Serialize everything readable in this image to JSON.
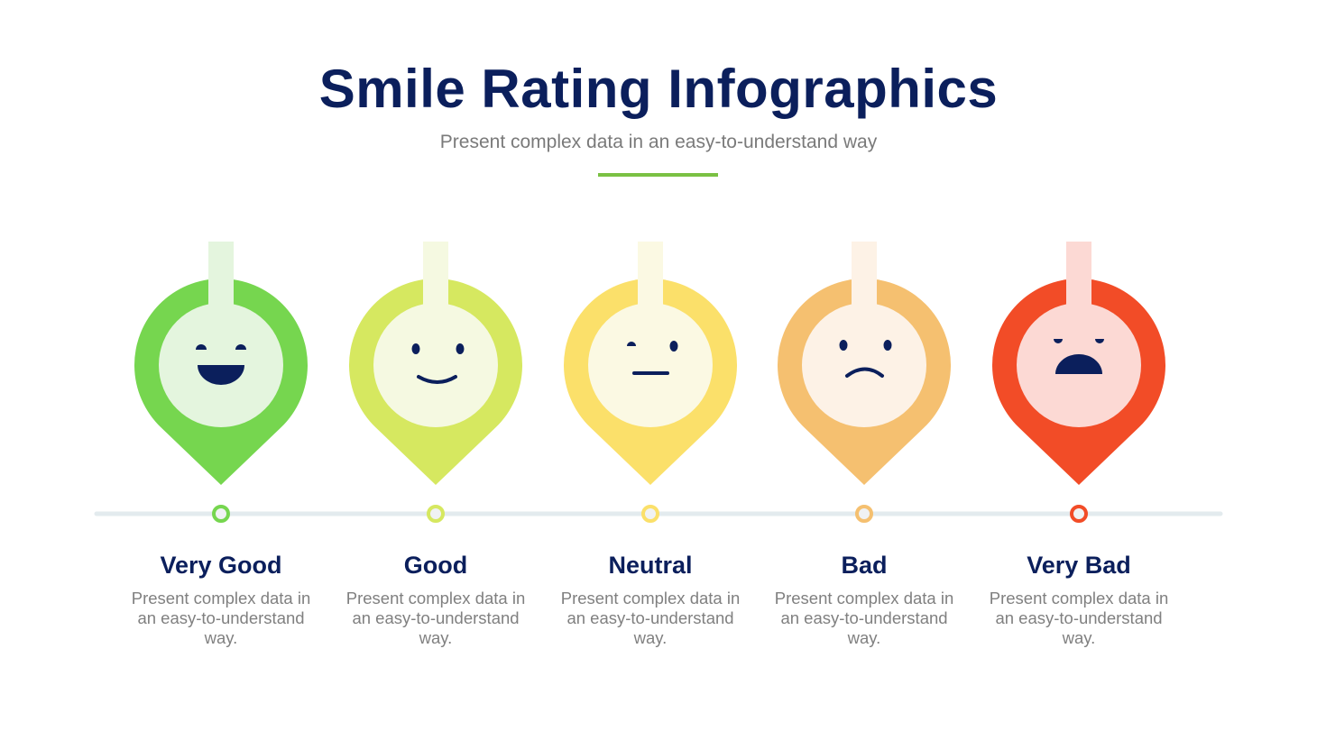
{
  "header": {
    "title": "Smile Rating Infographics",
    "subtitle": "Present complex data in an easy-to-understand way",
    "accent_color": "#7ac143"
  },
  "face_color": "#0b1f5c",
  "timeline_color": "#e3ebee",
  "ratings": [
    {
      "label": "Very Good",
      "description": "Present complex data in an easy-to-understand way.",
      "face": "big-smile-icon",
      "color": "#76d64f",
      "light": "#e4f5de"
    },
    {
      "label": "Good",
      "description": "Present complex data in an easy-to-understand way.",
      "face": "smile-icon",
      "color": "#d6e860",
      "light": "#f5f9e1"
    },
    {
      "label": "Neutral",
      "description": "Present complex data in an easy-to-understand way.",
      "face": "neutral-face-icon",
      "color": "#fbe06a",
      "light": "#fbf9e3"
    },
    {
      "label": "Bad",
      "description": "Present complex data in an easy-to-understand way.",
      "face": "sad-face-icon",
      "color": "#f5c070",
      "light": "#fdf2e6"
    },
    {
      "label": "Very Bad",
      "description": "Present complex data in an easy-to-understand way.",
      "face": "angry-face-icon",
      "color": "#f24c27",
      "light": "#fcd9d4"
    }
  ]
}
